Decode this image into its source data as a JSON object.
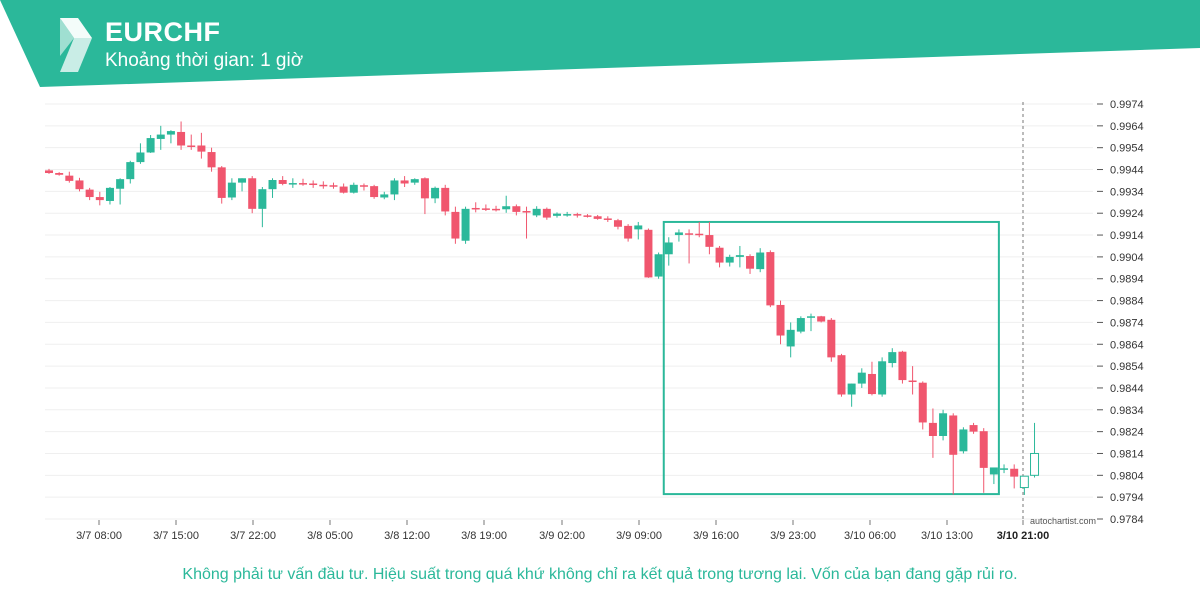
{
  "header": {
    "symbol": "EURCHF",
    "timeframe": "Khoảng thời gian: 1 giờ",
    "brand_color": "#2bb89a"
  },
  "disclaimer": "Không phải tư vấn đầu tư. Hiệu suất trong quá khứ không chỉ ra kết quả trong tương lai. Vốn của bạn đang gặp rủi ro.",
  "watermark": "autochartist.com",
  "chart_data": {
    "type": "candlestick",
    "x_tick_labels": [
      "3/7 08:00",
      "3/7 15:00",
      "3/7 22:00",
      "3/8 05:00",
      "3/8 12:00",
      "3/8 19:00",
      "3/9 02:00",
      "3/9 09:00",
      "3/9 16:00",
      "3/9 23:00",
      "3/10 06:00",
      "3/10 13:00",
      "3/10 21:00"
    ],
    "y_tick_labels": [
      "0.9974",
      "0.9964",
      "0.9954",
      "0.9944",
      "0.9934",
      "0.9924",
      "0.9914",
      "0.9904",
      "0.9894",
      "0.9884",
      "0.9874",
      "0.9864",
      "0.9854",
      "0.9844",
      "0.9834",
      "0.9824",
      "0.9814",
      "0.9804",
      "0.9794",
      "0.9784"
    ],
    "ylim": [
      0.9784,
      0.9974
    ],
    "grid": true,
    "up_color": "#2bb89a",
    "down_color": "#f0566e",
    "candles": [
      [
        0.99436,
        0.99443,
        0.9942,
        0.99424
      ],
      [
        0.99424,
        0.99428,
        0.99412,
        0.99416
      ],
      [
        0.99412,
        0.9943,
        0.9938,
        0.99388
      ],
      [
        0.9939,
        0.99402,
        0.9934,
        0.9935
      ],
      [
        0.99348,
        0.99356,
        0.993,
        0.99314
      ],
      [
        0.99314,
        0.99338,
        0.99276,
        0.993
      ],
      [
        0.99296,
        0.9936,
        0.9928,
        0.99356
      ],
      [
        0.99352,
        0.994,
        0.9928,
        0.99396
      ],
      [
        0.99396,
        0.9948,
        0.99376,
        0.99474
      ],
      [
        0.99474,
        0.9956,
        0.99466,
        0.99518
      ],
      [
        0.99518,
        0.99598,
        0.99516,
        0.99584
      ],
      [
        0.9958,
        0.9964,
        0.9953,
        0.996
      ],
      [
        0.996,
        0.9962,
        0.9956,
        0.99616
      ],
      [
        0.99612,
        0.9966,
        0.9953,
        0.9955
      ],
      [
        0.9955,
        0.996,
        0.9953,
        0.99548
      ],
      [
        0.9955,
        0.99608,
        0.9949,
        0.99522
      ],
      [
        0.9952,
        0.9954,
        0.9943,
        0.9945
      ],
      [
        0.9945,
        0.99456,
        0.99284,
        0.9931
      ],
      [
        0.99312,
        0.994,
        0.993,
        0.9938
      ],
      [
        0.9938,
        0.994,
        0.9934,
        0.994
      ],
      [
        0.994,
        0.9941,
        0.9924,
        0.9926
      ],
      [
        0.9926,
        0.9936,
        0.99176,
        0.9935
      ],
      [
        0.9935,
        0.994,
        0.9931,
        0.99392
      ],
      [
        0.99392,
        0.9941,
        0.99368,
        0.99374
      ],
      [
        0.99376,
        0.994,
        0.99356,
        0.99378
      ],
      [
        0.99378,
        0.99398,
        0.99366,
        0.99374
      ],
      [
        0.99376,
        0.9939,
        0.99356,
        0.9937
      ],
      [
        0.9937,
        0.99386,
        0.99352,
        0.99368
      ],
      [
        0.99368,
        0.9938,
        0.99352,
        0.99362
      ],
      [
        0.99362,
        0.99376,
        0.9933,
        0.99334
      ],
      [
        0.99334,
        0.9938,
        0.9933,
        0.9937
      ],
      [
        0.99368,
        0.99376,
        0.99344,
        0.99364
      ],
      [
        0.99364,
        0.9937,
        0.99306,
        0.99314
      ],
      [
        0.99312,
        0.99338,
        0.99304,
        0.99326
      ],
      [
        0.99326,
        0.994,
        0.993,
        0.9939
      ],
      [
        0.9939,
        0.9941,
        0.9936,
        0.99376
      ],
      [
        0.9938,
        0.994,
        0.9937,
        0.99396
      ],
      [
        0.994,
        0.99404,
        0.99236,
        0.99308
      ],
      [
        0.99308,
        0.99362,
        0.99286,
        0.99356
      ],
      [
        0.99356,
        0.9937,
        0.9923,
        0.99248
      ],
      [
        0.99246,
        0.9927,
        0.991,
        0.99124
      ],
      [
        0.99114,
        0.9927,
        0.991,
        0.9926
      ],
      [
        0.99264,
        0.9929,
        0.99244,
        0.99262
      ],
      [
        0.99262,
        0.9928,
        0.9925,
        0.9926
      ],
      [
        0.9926,
        0.99274,
        0.99248,
        0.99254
      ],
      [
        0.99258,
        0.9932,
        0.99242,
        0.99272
      ],
      [
        0.99272,
        0.9928,
        0.9923,
        0.99246
      ],
      [
        0.9925,
        0.9927,
        0.99124,
        0.99246
      ],
      [
        0.9923,
        0.99272,
        0.99222,
        0.9926
      ],
      [
        0.9926,
        0.99266,
        0.9921,
        0.9922
      ],
      [
        0.99228,
        0.99244,
        0.9922,
        0.99238
      ],
      [
        0.99232,
        0.99246,
        0.99224,
        0.99236
      ],
      [
        0.99236,
        0.99242,
        0.9922,
        0.9923
      ],
      [
        0.9923,
        0.99236,
        0.9922,
        0.99226
      ],
      [
        0.99226,
        0.99232,
        0.9921,
        0.99214
      ],
      [
        0.99216,
        0.99226,
        0.992,
        0.99212
      ],
      [
        0.99208,
        0.99214,
        0.99166,
        0.99178
      ],
      [
        0.99182,
        0.9919,
        0.9911,
        0.99124
      ],
      [
        0.99166,
        0.992,
        0.9912,
        0.99184
      ],
      [
        0.99164,
        0.9917,
        0.98944,
        0.98946
      ],
      [
        0.9895,
        0.9906,
        0.9894,
        0.99052
      ],
      [
        0.99052,
        0.9913,
        0.99,
        0.99106
      ],
      [
        0.9914,
        0.99166,
        0.9911,
        0.99152
      ],
      [
        0.99148,
        0.99166,
        0.9901,
        0.99146
      ],
      [
        0.99146,
        0.992,
        0.9913,
        0.9914
      ],
      [
        0.9914,
        0.992,
        0.99052,
        0.99086
      ],
      [
        0.99082,
        0.9909,
        0.98992,
        0.99014
      ],
      [
        0.99014,
        0.9905,
        0.98996,
        0.9904
      ],
      [
        0.9904,
        0.9909,
        0.98992,
        0.99048
      ],
      [
        0.99044,
        0.99052,
        0.98962,
        0.98986
      ],
      [
        0.98984,
        0.9908,
        0.9897,
        0.9906
      ],
      [
        0.99062,
        0.9907,
        0.9881,
        0.98818
      ],
      [
        0.9882,
        0.9884,
        0.9864,
        0.9868
      ],
      [
        0.9863,
        0.9874,
        0.9858,
        0.98706
      ],
      [
        0.98698,
        0.98768,
        0.9869,
        0.9876
      ],
      [
        0.98762,
        0.9878,
        0.987,
        0.98768
      ],
      [
        0.98768,
        0.9877,
        0.9874,
        0.98744
      ],
      [
        0.98752,
        0.9876,
        0.9856,
        0.9858
      ],
      [
        0.9859,
        0.98596,
        0.984,
        0.9841
      ],
      [
        0.9841,
        0.9846,
        0.98354,
        0.9846
      ],
      [
        0.9846,
        0.9853,
        0.9844,
        0.9851
      ],
      [
        0.98504,
        0.9856,
        0.98406,
        0.98412
      ],
      [
        0.9841,
        0.9858,
        0.984,
        0.98562
      ],
      [
        0.98554,
        0.98622,
        0.98534,
        0.98604
      ],
      [
        0.98606,
        0.9861,
        0.9846,
        0.98476
      ],
      [
        0.98474,
        0.9854,
        0.9841,
        0.9847
      ],
      [
        0.98464,
        0.9847,
        0.9825,
        0.98282
      ],
      [
        0.9828,
        0.98346,
        0.9812,
        0.9822
      ],
      [
        0.9822,
        0.9834,
        0.982,
        0.98324
      ],
      [
        0.98314,
        0.98324,
        0.97952,
        0.98134
      ],
      [
        0.9815,
        0.9826,
        0.9814,
        0.9825
      ],
      [
        0.9827,
        0.9828,
        0.9823,
        0.9824
      ],
      [
        0.98242,
        0.98256,
        0.9796,
        0.98074
      ],
      [
        0.98044,
        0.9806,
        0.98,
        0.98076
      ],
      [
        0.98066,
        0.9809,
        0.9805,
        0.98072
      ],
      [
        0.9807,
        0.9809,
        0.9798,
        0.98034
      ],
      [
        0.97984,
        0.9803,
        0.9795,
        0.98036
      ],
      [
        0.9804,
        0.9828,
        0.9803,
        0.9814
      ]
    ],
    "pattern_box": {
      "x_start_candle": 61,
      "x_end_candle": 93,
      "y_top": 0.992,
      "y_bottom": 0.97954
    },
    "current_time_label": "3/10 21:00"
  }
}
